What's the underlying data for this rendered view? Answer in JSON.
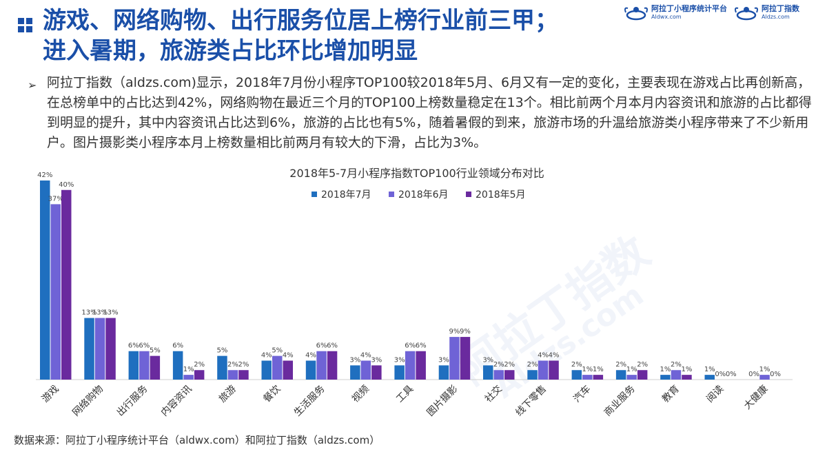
{
  "title": {
    "line1": "游戏、网络购物、出行服务位居上榜行业前三甲；",
    "line2": "进入暑期，旅游类占比环比增加明显"
  },
  "logos": {
    "left": {
      "name": "阿拉丁小程序统计平台",
      "url": "Aldwx.com"
    },
    "right": {
      "name": "阿拉丁指数",
      "url": "Aldzs.com"
    }
  },
  "paragraph": "阿拉丁指数（aldzs.com)显示，2018年7月份小程序TOP100较2018年5月、6月又有一定的变化，主要表现在游戏占比再创新高，在总榜单中的占比达到42%，网络购物在最近三个月的TOP100上榜数量稳定在13个。相比前两个月本月内容资讯和旅游的占比都得到明显的提升，其中内容资讯占比达到6%，旅游的占比也有5%，随着暑假的到来，旅游市场的升温给旅游类小程序带来了不少新用户。图片摄影类小程序本月上榜数量相比前两月有较大的下滑，占比为3%。",
  "source": "数据来源：阿拉丁小程序统计平台（aldwx.com）和阿拉丁指数（aldzs.com）",
  "chart_data": {
    "type": "bar",
    "title": "2018年5-7月小程序指数TOP100行业领域分布对比",
    "categories": [
      "游戏",
      "网络购物",
      "出行服务",
      "内容资讯",
      "旅游",
      "餐饮",
      "生活服务",
      "视频",
      "工具",
      "图片摄影",
      "社交",
      "线下零售",
      "汽车",
      "商业服务",
      "教育",
      "阅读",
      "大健康"
    ],
    "series": [
      {
        "name": "2018年7月",
        "color": "#1f6fbf",
        "values": [
          42,
          13,
          6,
          6,
          5,
          4,
          4,
          3,
          3,
          3,
          3,
          2,
          2,
          2,
          1,
          1,
          0
        ]
      },
      {
        "name": "2018年6月",
        "color": "#6f63d6",
        "values": [
          37,
          13,
          6,
          1,
          2,
          5,
          6,
          4,
          6,
          9,
          2,
          4,
          1,
          1,
          2,
          0,
          1
        ]
      },
      {
        "name": "2018年5月",
        "color": "#6a2a9e",
        "values": [
          40,
          13,
          5,
          2,
          2,
          4,
          6,
          3,
          6,
          9,
          2,
          4,
          1,
          2,
          1,
          0,
          0
        ]
      }
    ],
    "ylim": [
      0,
      42
    ],
    "legend": "top-center",
    "data_label_suffix": "%",
    "grid": false
  }
}
